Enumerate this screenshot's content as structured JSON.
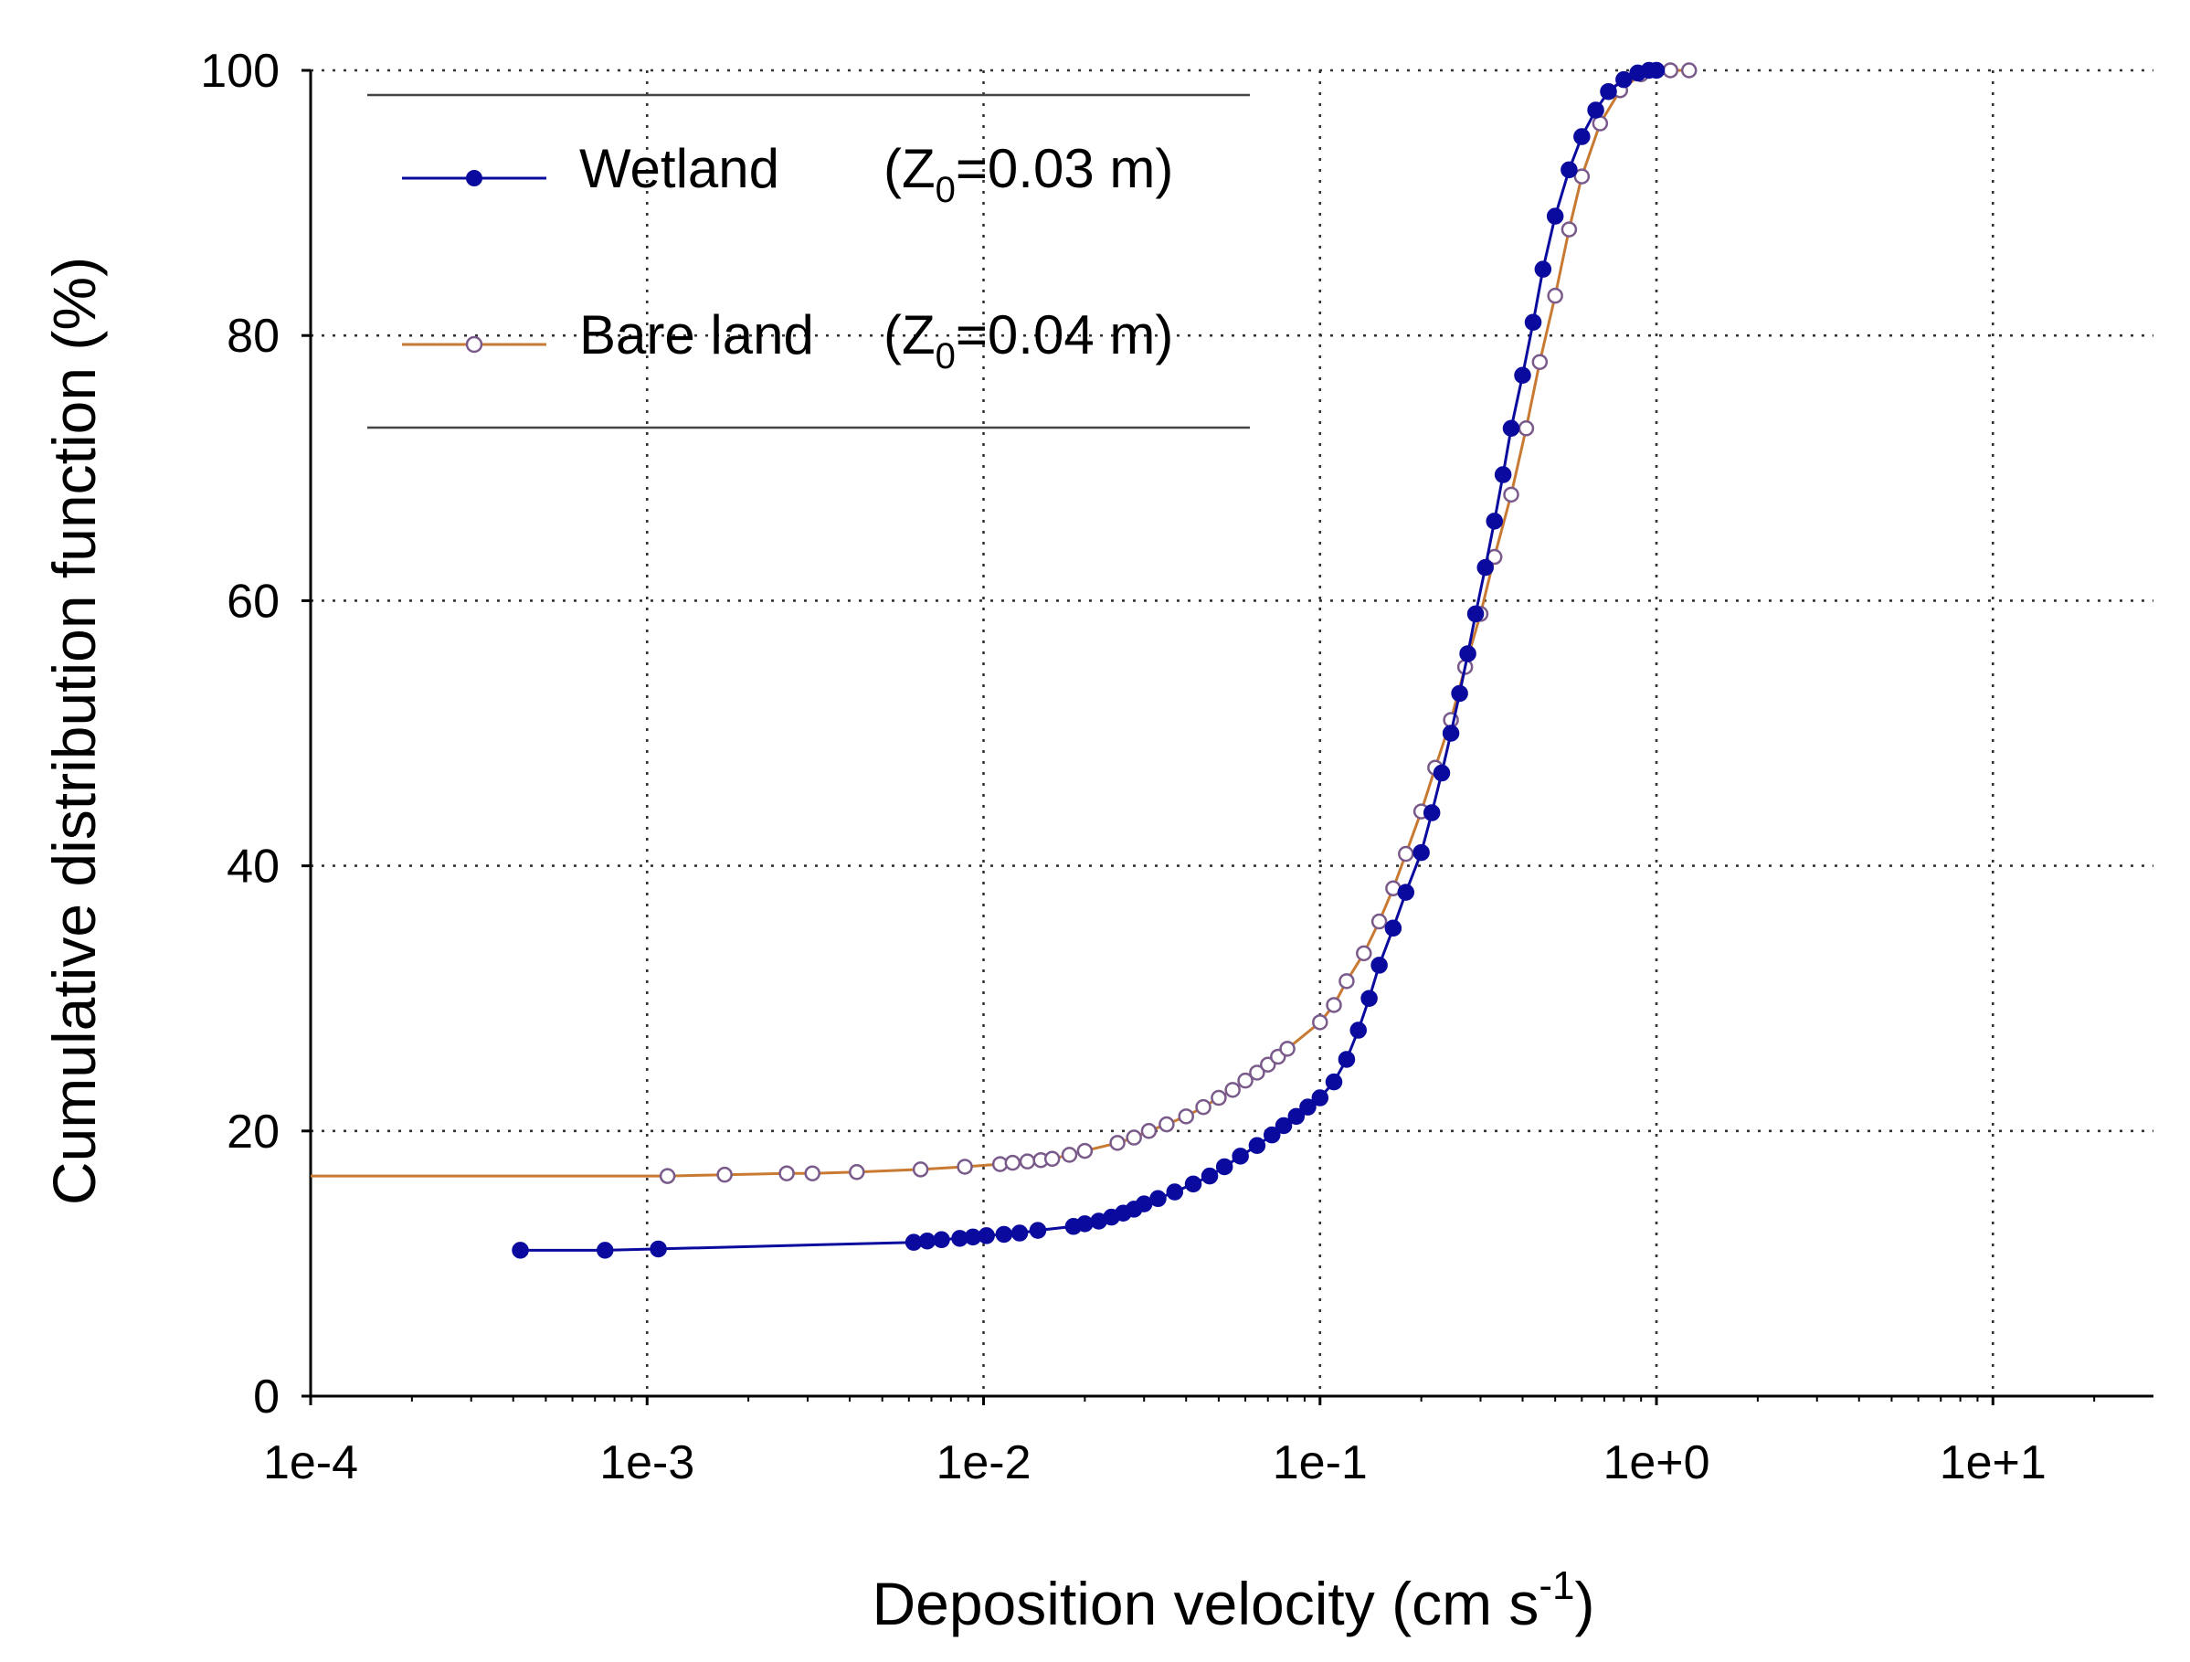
{
  "chart_data": {
    "type": "line",
    "title": "",
    "xlabel": "Deposition velocity (cm s-1)",
    "xlabel_main": "Deposition velocity (cm s",
    "xlabel_sup": "-1",
    "xlabel_close": ")",
    "ylabel": "Cumulative distribution function (%)",
    "xscale": "log",
    "xlim": [
      0.0001,
      30
    ],
    "ylim": [
      0,
      100
    ],
    "grid": true,
    "legend_position": "top-left",
    "x_ticks": [
      {
        "value": 0.0001,
        "label": "1e-4"
      },
      {
        "value": 0.001,
        "label": "1e-3"
      },
      {
        "value": 0.01,
        "label": "1e-2"
      },
      {
        "value": 0.1,
        "label": "1e-1"
      },
      {
        "value": 1,
        "label": "1e+0"
      },
      {
        "value": 10,
        "label": "1e+1"
      }
    ],
    "y_ticks": [
      {
        "value": 0,
        "label": "0"
      },
      {
        "value": 20,
        "label": "20"
      },
      {
        "value": 40,
        "label": "40"
      },
      {
        "value": 60,
        "label": "60"
      },
      {
        "value": 80,
        "label": "80"
      },
      {
        "value": 100,
        "label": "100"
      }
    ],
    "series": [
      {
        "name": "Wetland",
        "param_prefix": "(Z",
        "param_sub": "0",
        "param_suffix": "=0.03 m)",
        "color": "#0a0a9e",
        "marker": "filled-circle",
        "x": [
          0.00042,
          0.00075,
          0.00108,
          0.0062,
          0.0068,
          0.0075,
          0.0085,
          0.0093,
          0.0102,
          0.0115,
          0.0128,
          0.0145,
          0.0185,
          0.02,
          0.022,
          0.024,
          0.026,
          0.028,
          0.03,
          0.033,
          0.037,
          0.042,
          0.047,
          0.052,
          0.058,
          0.065,
          0.072,
          0.078,
          0.085,
          0.092,
          0.1,
          0.11,
          0.12,
          0.13,
          0.14,
          0.15,
          0.165,
          0.18,
          0.2,
          0.215,
          0.23,
          0.245,
          0.26,
          0.275,
          0.29,
          0.31,
          0.33,
          0.35,
          0.37,
          0.4,
          0.43,
          0.46,
          0.5,
          0.55,
          0.6,
          0.66,
          0.72,
          0.8,
          0.88,
          0.95,
          1.0
        ],
        "y": [
          11,
          11,
          11.1,
          11.6,
          11.7,
          11.8,
          11.9,
          12,
          12.1,
          12.2,
          12.3,
          12.5,
          12.8,
          13,
          13.2,
          13.5,
          13.8,
          14.1,
          14.5,
          14.9,
          15.4,
          16,
          16.6,
          17.3,
          18.1,
          18.9,
          19.7,
          20.4,
          21.1,
          21.8,
          22.5,
          23.7,
          25.4,
          27.6,
          30,
          32.5,
          35.3,
          38,
          41,
          44,
          47,
          50,
          53,
          56,
          59,
          62.5,
          66,
          69.5,
          73,
          77,
          81,
          85,
          89,
          92.5,
          95,
          97,
          98.4,
          99.3,
          99.8,
          100,
          100
        ]
      },
      {
        "name": "Bare land",
        "param_prefix": "(Z",
        "param_sub": "0",
        "param_suffix": "=0.04 m)",
        "color": "#c87a33",
        "marker": "open-circle",
        "x": [
          0.0001,
          0.00115,
          0.0017,
          0.0026,
          0.0031,
          0.0042,
          0.0065,
          0.0088,
          0.0112,
          0.0122,
          0.0135,
          0.0148,
          0.016,
          0.018,
          0.02,
          0.025,
          0.028,
          0.031,
          0.035,
          0.04,
          0.045,
          0.05,
          0.055,
          0.06,
          0.065,
          0.07,
          0.075,
          0.08,
          0.1,
          0.11,
          0.12,
          0.135,
          0.15,
          0.165,
          0.18,
          0.2,
          0.22,
          0.245,
          0.27,
          0.3,
          0.33,
          0.37,
          0.41,
          0.45,
          0.5,
          0.55,
          0.6,
          0.68,
          0.78,
          0.9,
          1.0,
          1.1,
          1.25
        ],
        "y": [
          16.6,
          16.6,
          16.7,
          16.8,
          16.8,
          16.9,
          17.1,
          17.3,
          17.5,
          17.6,
          17.7,
          17.8,
          17.9,
          18.2,
          18.5,
          19.1,
          19.5,
          20,
          20.5,
          21.1,
          21.8,
          22.5,
          23.1,
          23.8,
          24.4,
          25,
          25.6,
          26.2,
          28.2,
          29.5,
          31.3,
          33.4,
          35.8,
          38.3,
          40.9,
          44.1,
          47.4,
          51,
          55,
          59,
          63.3,
          68,
          73,
          78,
          83,
          88,
          92,
          96,
          98.5,
          99.7,
          100,
          100,
          100
        ]
      }
    ]
  }
}
